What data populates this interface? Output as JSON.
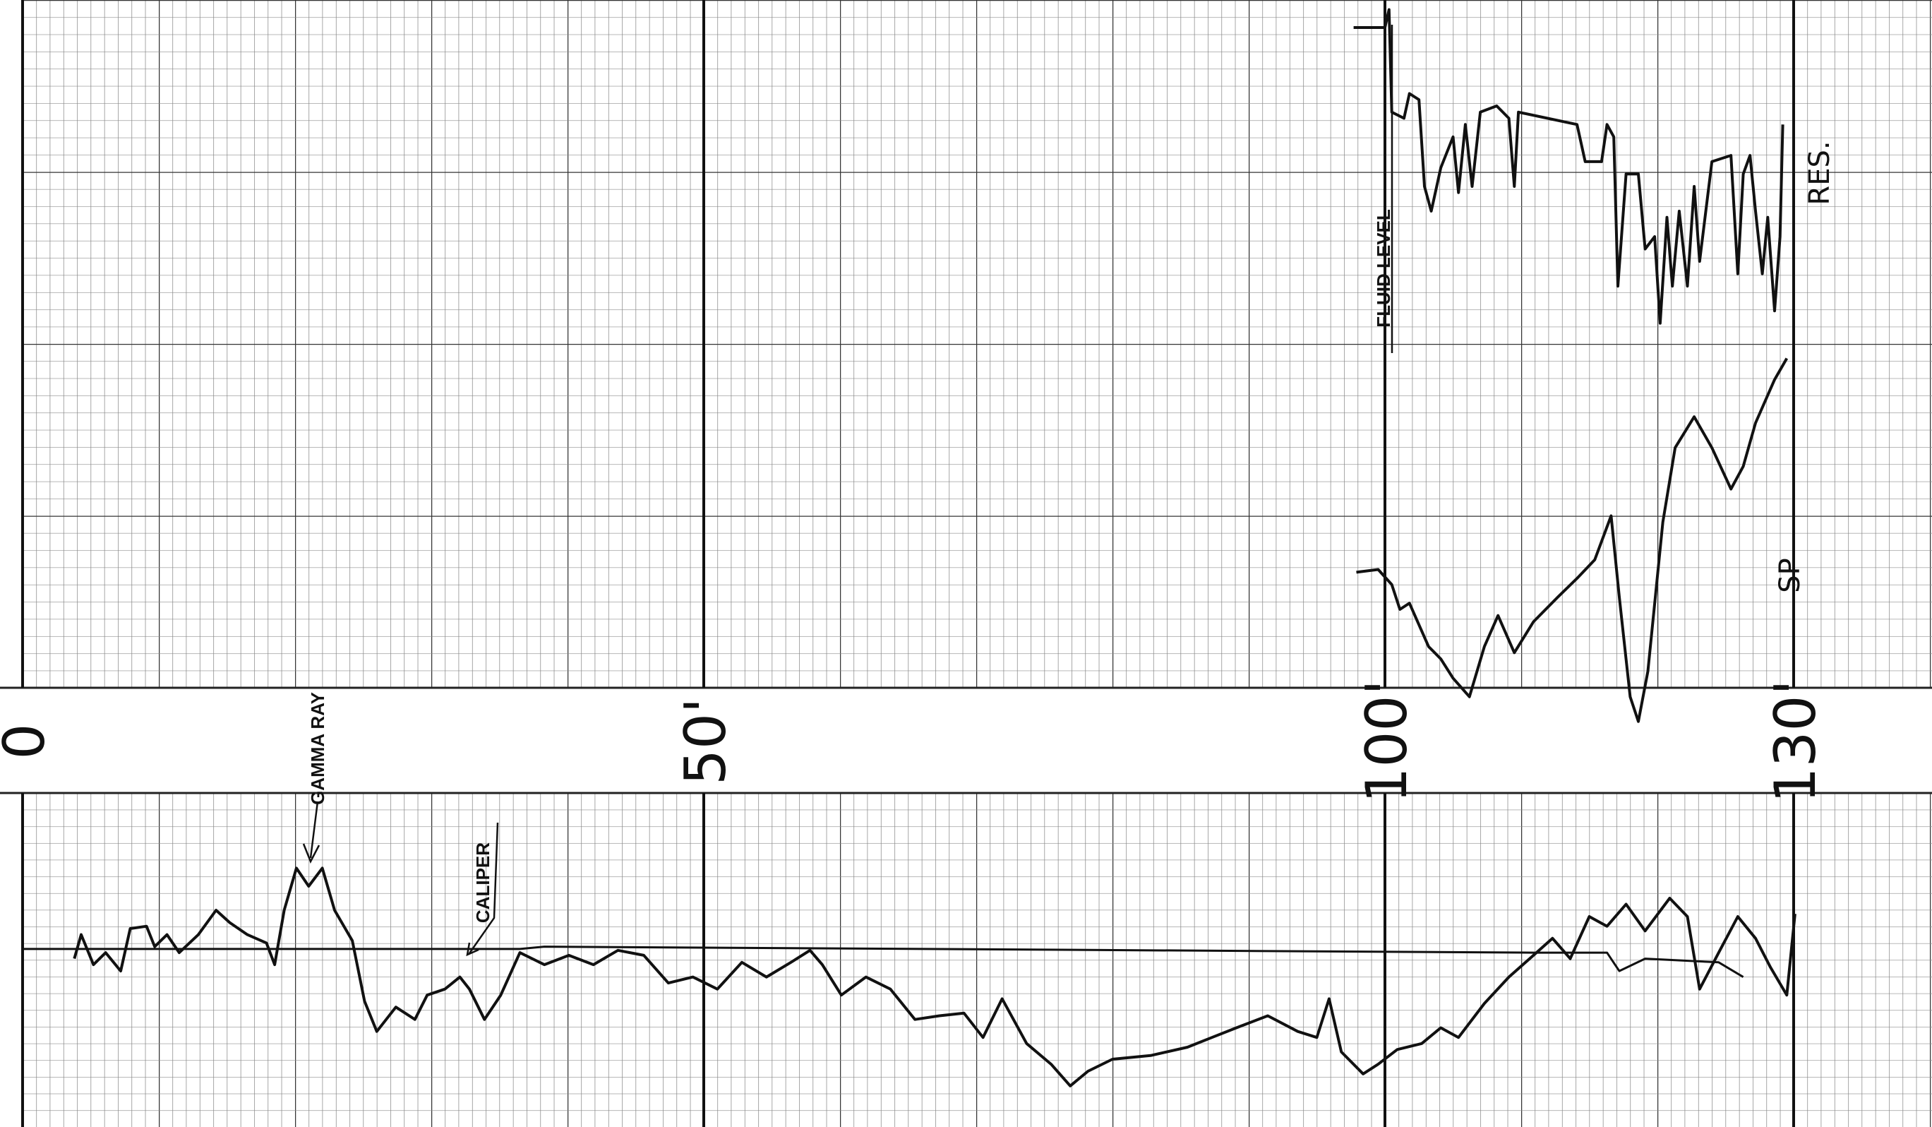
{
  "chart_data": [
    {
      "type": "line",
      "xlim": [
        0,
        140
      ],
      "ylim": [
        0,
        100
      ],
      "annotations": [
        "FLUID LEVEL"
      ],
      "series": [
        {
          "name": "RES.",
          "color": "#111111",
          "x": [
            97.7,
            100,
            100.3,
            100.5,
            101.4,
            101.8,
            102.5,
            102.9,
            103.4,
            104.1,
            105,
            105.4,
            105.9,
            106.4,
            107,
            108.2,
            109.1,
            109.5,
            109.8,
            114.1,
            114.7,
            115.9,
            116.3,
            116.8,
            117.1,
            117.7,
            118.6,
            119.1,
            119.8,
            120.2,
            120.7,
            121.1,
            121.6,
            122.2,
            122.7,
            123.1,
            124,
            125.4,
            125.9,
            126.3,
            126.8,
            127.2,
            127.7,
            128.1,
            128.6,
            129,
            129.2
          ],
          "values": [
            96,
            96,
            98.6,
            83.7,
            82.8,
            86.4,
            85.5,
            72.9,
            69.3,
            75.6,
            80.1,
            72,
            81.9,
            72.9,
            83.7,
            84.6,
            82.8,
            72.9,
            83.7,
            81.9,
            76.5,
            76.5,
            81.9,
            80.1,
            58.4,
            74.7,
            74.7,
            63.8,
            65.6,
            53,
            68.4,
            58.4,
            69.3,
            58.4,
            72.9,
            62,
            76.5,
            77.4,
            60.2,
            74.7,
            77.4,
            69.3,
            60.2,
            68.4,
            54.8,
            65.6,
            81.9
          ]
        },
        {
          "name": "SP",
          "color": "#111111",
          "x": [
            97.9,
            99.5,
            100.5,
            101.1,
            101.8,
            103.2,
            104.1,
            105,
            106.2,
            107.3,
            108.3,
            109.5,
            110.9,
            112.7,
            114.1,
            115.4,
            116.6,
            117.2,
            118,
            118.6,
            119.3,
            120.4,
            121.3,
            122.7,
            124,
            125.4,
            126.3,
            127.2,
            128.6,
            129.5
          ],
          "values": [
            16.8,
            17.2,
            15,
            11.4,
            12.3,
            6,
            4.2,
            1.4,
            -1.3,
            6,
            10.5,
            5.1,
            9.6,
            13.2,
            15.9,
            18.6,
            25,
            13.2,
            -1.3,
            -4.9,
            2.4,
            24.1,
            34.9,
            39.4,
            34.9,
            28.9,
            32.2,
            38.5,
            44.8,
            47.9
          ]
        }
      ]
    },
    {
      "type": "line",
      "xlim": [
        0,
        140
      ],
      "ylim": [
        0,
        100
      ],
      "xticks": [
        0,
        {
          "value": 50,
          "label": "50'"
        },
        {
          "value": 100,
          "label": "100'"
        },
        {
          "value": 130,
          "label": "130'"
        }
      ],
      "series": [
        {
          "name": "GAMMA RAY",
          "color": "#111111",
          "x": [
            3.8,
            4.3,
            5.2,
            6.1,
            7.2,
            7.9,
            9.1,
            9.7,
            10.6,
            11.5,
            12.9,
            14.2,
            15.2,
            16.5,
            17.9,
            18.5,
            19.2,
            20.1,
            21,
            22,
            22.9,
            24.2,
            25.1,
            26,
            27.4,
            28.8,
            29.7,
            31,
            32.1,
            32.8,
            33.9,
            35.1,
            36.5,
            38.3,
            40.1,
            41.9,
            43.7,
            45.6,
            47.4,
            49.2,
            51,
            52.8,
            54.6,
            56.4,
            57.8,
            58.7,
            60.1,
            61.9,
            63.7,
            65.5,
            67.3,
            69.1,
            70.5,
            71.9,
            73.7,
            75.5,
            76.9,
            78.2,
            80,
            82.8,
            85.5,
            87.3,
            89.1,
            91.4,
            93.6,
            95,
            95.9,
            96.8,
            98.4,
            99.5,
            100.9,
            102.7,
            104.1,
            105.4,
            107.3,
            109.1,
            110.9,
            112.3,
            113.6,
            115,
            116.3,
            117.7,
            119.1,
            120.9,
            122.2,
            123.1,
            124.5,
            125.9,
            127.2,
            128.3,
            129.5,
            130.1
          ],
          "values": [
            50.4,
            57.6,
            48.6,
            52.2,
            46.7,
            59.4,
            60.1,
            54,
            57.6,
            52.2,
            57.6,
            64.9,
            61.2,
            57.6,
            55.1,
            48.6,
            64.9,
            77.5,
            72.1,
            77.5,
            64.9,
            55.8,
            37.7,
            28.6,
            35.9,
            32.2,
            39.5,
            41.3,
            44.9,
            41.3,
            32.2,
            39.5,
            52.2,
            48.6,
            51.4,
            48.6,
            52.9,
            51.4,
            43.1,
            44.9,
            41.3,
            49.3,
            44.9,
            49.3,
            52.9,
            48.6,
            39.5,
            44.9,
            41.3,
            32.2,
            33.3,
            34.1,
            26.8,
            38.4,
            25,
            18.8,
            12.3,
            16.7,
            20.3,
            21.4,
            23.9,
            26.8,
            29.7,
            33.3,
            28.6,
            26.8,
            38.4,
            22.5,
            15.9,
            18.8,
            23.2,
            25,
            29.7,
            26.8,
            37,
            44.9,
            51.4,
            56.5,
            50.4,
            63,
            60.1,
            66.7,
            58.7,
            68.5,
            63,
            41.3,
            52.2,
            63,
            56.5,
            47.8,
            39.5,
            63.8
          ]
        },
        {
          "name": "CALIPER",
          "color": "#111111",
          "x": [
            0,
            36.5,
            38.3,
            110.9,
            116.3,
            117.2,
            119.1,
            124.5,
            126.3
          ],
          "values": [
            53.3,
            53.3,
            54,
            52.2,
            52.2,
            46.7,
            50.4,
            49.3,
            44.9
          ]
        }
      ]
    }
  ]
}
